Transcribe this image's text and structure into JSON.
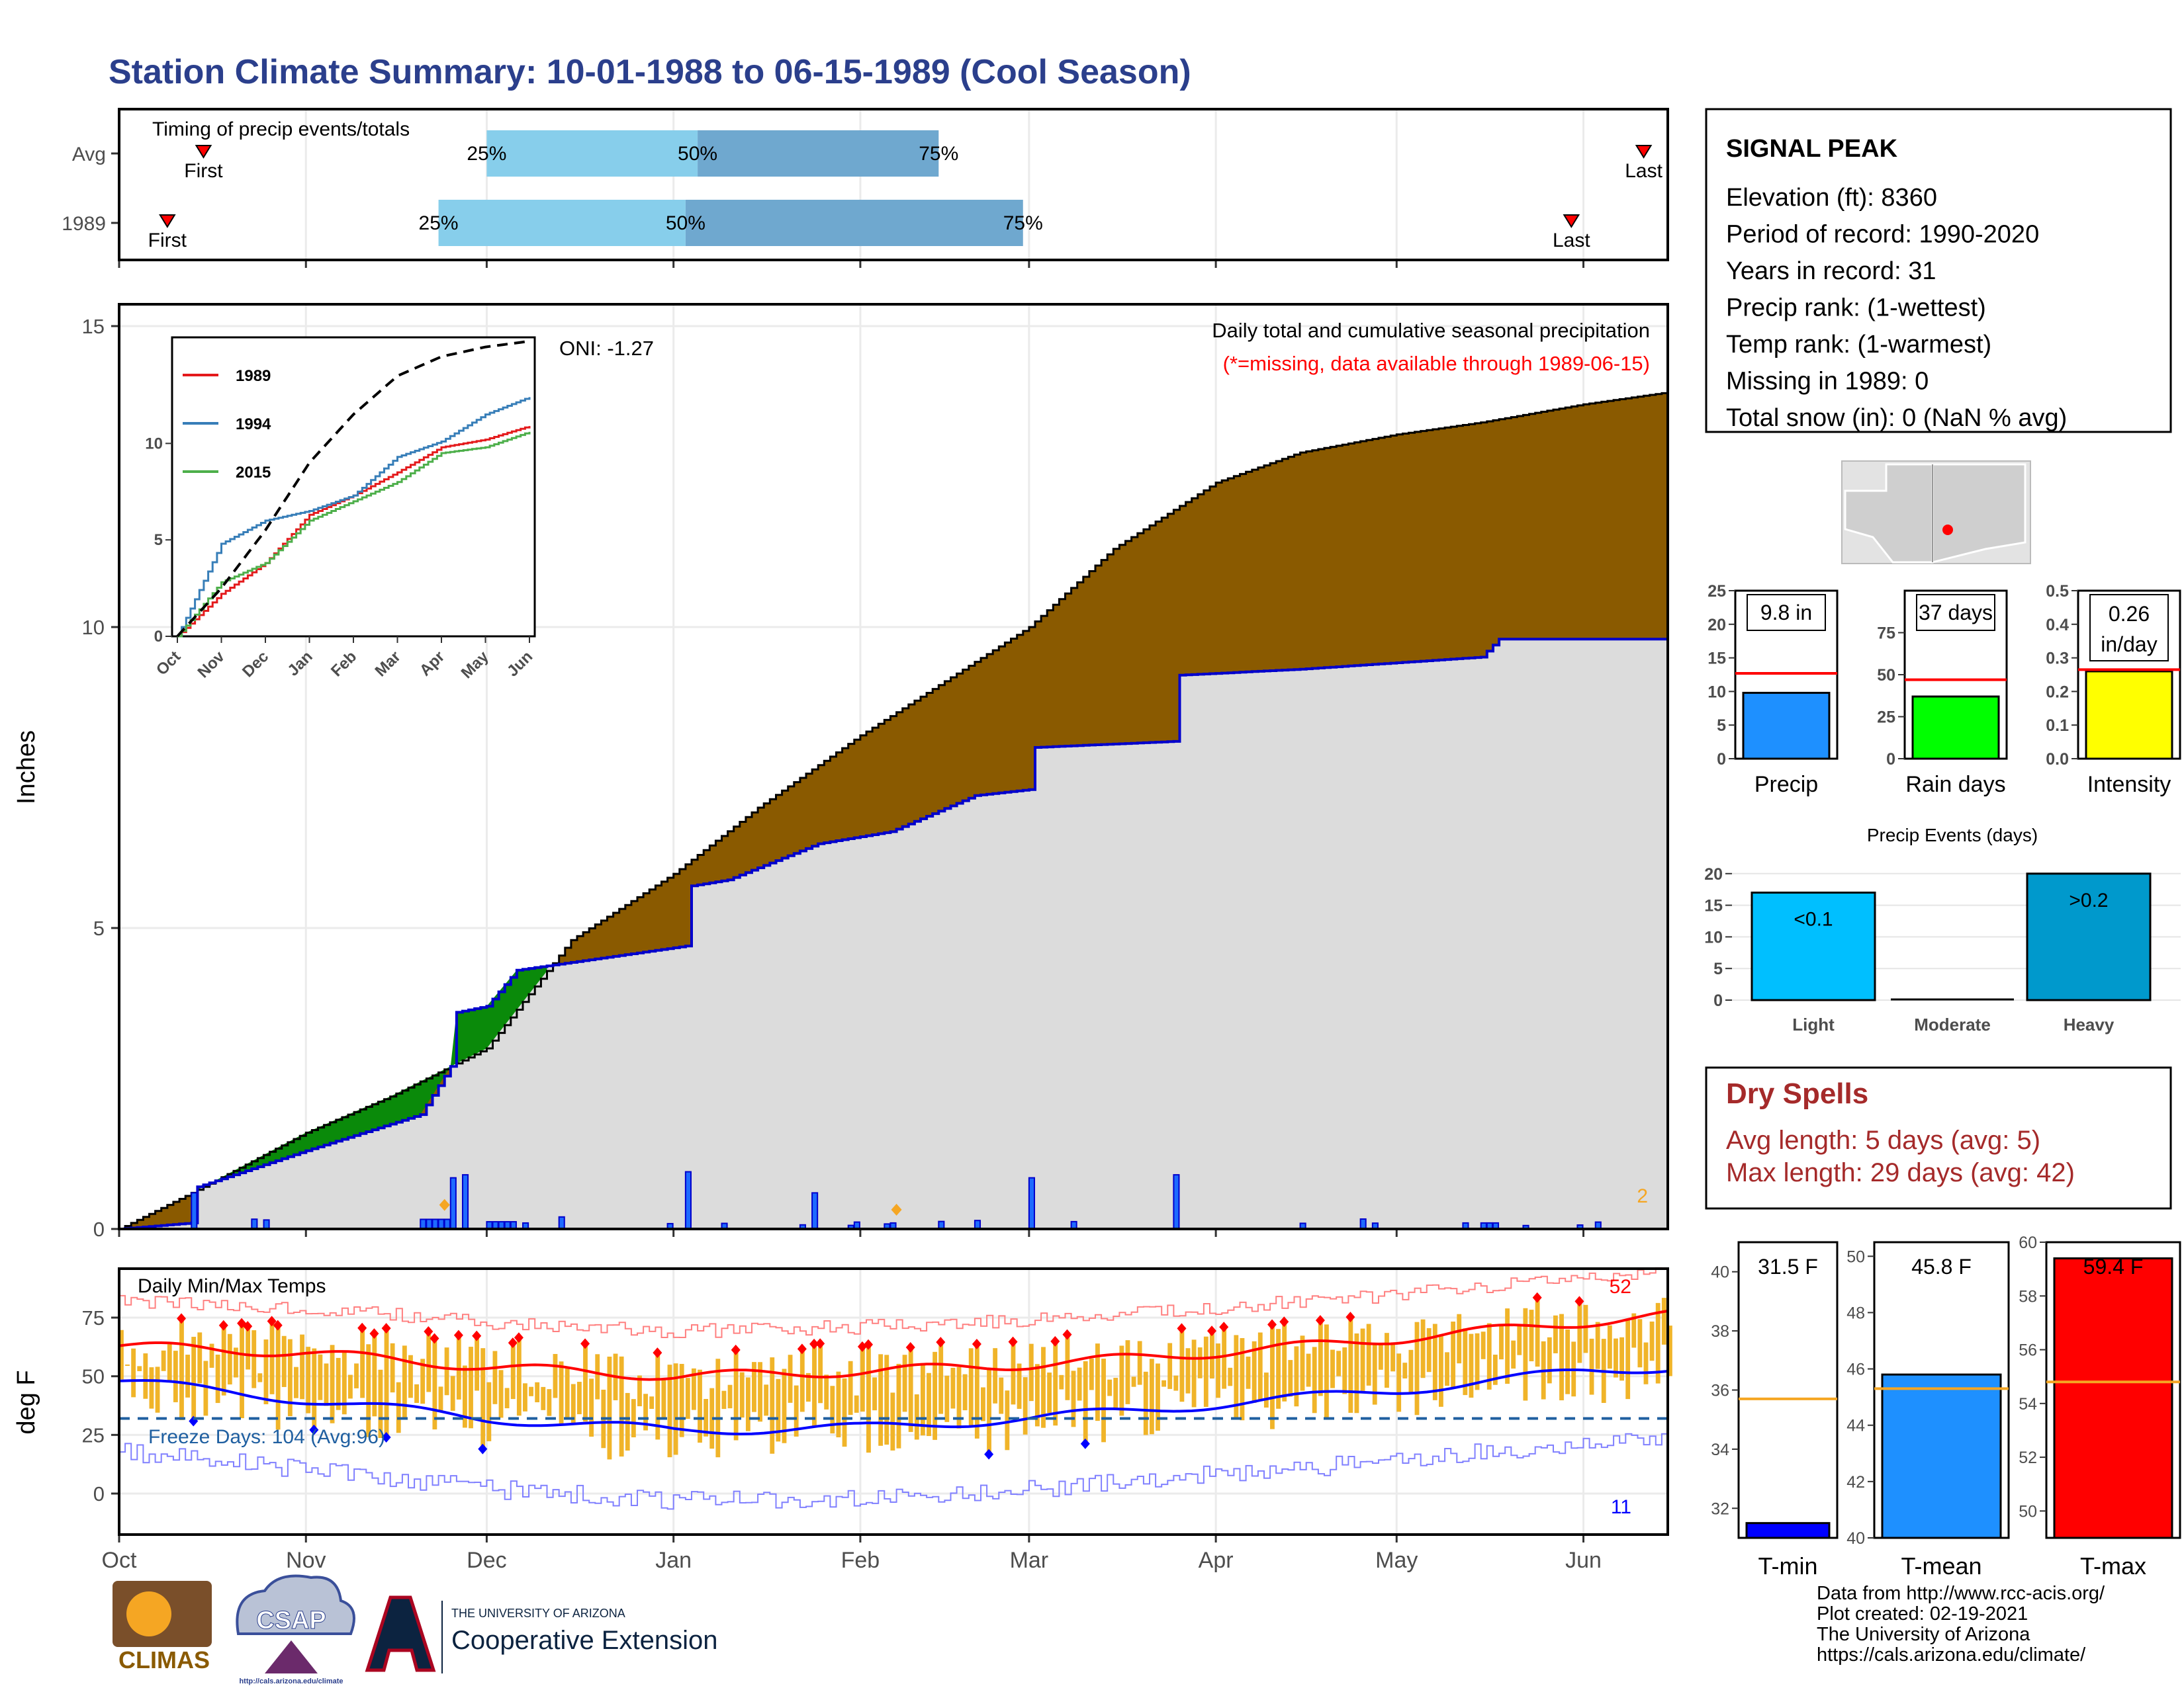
{
  "title": "Station Climate Summary: 10-01-1988 to 06-15-1989 (Cool Season)",
  "colors": {
    "title": "#2b3f8c",
    "precip_fill": "#8a5a00",
    "avg_fill": "#dcdcdc",
    "avg_line": "#0000cc",
    "timing_light": "#87ceeb",
    "timing_dark": "#6fa8cf",
    "temp_bar": "#f0b429",
    "red": "#ff0000",
    "blue": "#0000ff",
    "dry_spell": "#a52a2a",
    "freeze_line": "#1f5fa0"
  },
  "timing": {
    "title": "Timing of precip events/totals",
    "rows": [
      {
        "label": "Avg",
        "first": "First",
        "last": "Last",
        "p25": "25%",
        "p50": "50%",
        "p75": "75%",
        "first_date": "1988-10-15",
        "last_date": "1989-06-11",
        "q25_date": "1988-12-01",
        "q50_date": "1989-01-05",
        "q75_date": "1989-02-14"
      },
      {
        "label": "1989",
        "first": "First",
        "last": "Last",
        "p25": "25%",
        "p50": "50%",
        "p75": "75%",
        "first_date": "1988-10-09",
        "last_date": "1989-05-30",
        "q25_date": "1988-11-23",
        "q50_date": "1989-01-03",
        "q75_date": "1989-02-28"
      }
    ]
  },
  "main_plot": {
    "ylabel": "Inches",
    "y_ticks": [
      "0",
      "5",
      "10",
      "15"
    ],
    "oni": "ONI: -1.27",
    "subtitle": "Daily total and cumulative seasonal precipitation",
    "missing_note": "(*=missing, data available through 1989-06-15)",
    "missing_count": "2"
  },
  "inset": {
    "legend": [
      "1989",
      "1994",
      "2015"
    ],
    "legend_colors": [
      "#e41a1c",
      "#377eb8",
      "#4daf4a"
    ],
    "y_ticks": [
      "0",
      "5",
      "10"
    ],
    "x_ticks": [
      "Oct",
      "Nov",
      "Dec",
      "Jan",
      "Feb",
      "Mar",
      "Apr",
      "May",
      "Jun"
    ]
  },
  "temp_plot": {
    "ylabel": "deg F",
    "title": "Daily Min/Max Temps",
    "y_ticks": [
      "0",
      "25",
      "50",
      "75"
    ],
    "freeze_label": "Freeze Days: 104 (Avg:96)",
    "max_count": "52",
    "min_count": "11"
  },
  "x_months": [
    "Oct",
    "Nov",
    "Dec",
    "Jan",
    "Feb",
    "Mar",
    "Apr",
    "May",
    "Jun"
  ],
  "station": {
    "name": "SIGNAL PEAK",
    "lines": [
      "Elevation (ft): 8360",
      "Period of record: 1990-2020",
      "Years in record: 31",
      "Precip rank:  (1-wettest)",
      "Temp rank:  (1-warmest)",
      "Missing in 1989: 0",
      "Total snow (in): 0 (NaN % avg)"
    ]
  },
  "summary_bars": [
    {
      "label": "Precip",
      "value_text": "9.8 in",
      "value": 9.8,
      "avg": 12.7,
      "ymax": 25,
      "ticks": [
        "0",
        "5",
        "10",
        "15",
        "20",
        "25"
      ],
      "color": "#1e90ff"
    },
    {
      "label": "Rain days",
      "value_text": "37 days",
      "value": 37,
      "avg": 47,
      "ymax": 100,
      "ticks": [
        "0",
        "25",
        "50",
        "75"
      ],
      "color": "#00ff00"
    },
    {
      "label": "Intensity",
      "value_text": "0.26 in/day",
      "value_line1": "0.26",
      "value_line2": "in/day",
      "value": 0.26,
      "avg": 0.265,
      "ymax": 0.5,
      "ticks": [
        "0.0",
        "0.1",
        "0.2",
        "0.3",
        "0.4",
        "0.5"
      ],
      "color": "#ffff00"
    }
  ],
  "precip_events": {
    "title": "Precip Events (days)",
    "categories": [
      "Light",
      "Moderate",
      "Heavy"
    ],
    "labels": [
      "<0.1",
      "",
      ">0.2"
    ],
    "values": [
      17,
      0,
      20
    ],
    "colors": [
      "#00bfff",
      "#1e90ff",
      "#0099cc"
    ],
    "ticks": [
      "0",
      "5",
      "10",
      "15",
      "20"
    ]
  },
  "dry_spells": {
    "title": "Dry Spells",
    "avg_length": "Avg length: 5 days (avg: 5)",
    "max_length": "Max length: 29 days (avg: 42)"
  },
  "temp_bars": [
    {
      "label": "T-min",
      "value_text": "31.5 F",
      "value": 31.5,
      "avg": 35.7,
      "ymin": 31,
      "ymax": 41,
      "ticks": [
        "32",
        "34",
        "36",
        "38",
        "40"
      ],
      "color": "#0000ff"
    },
    {
      "label": "T-mean",
      "value_text": "45.8 F",
      "value": 45.8,
      "avg": 45.3,
      "ymin": 40,
      "ymax": 50.5,
      "ticks": [
        "40",
        "42",
        "44",
        "46",
        "48",
        "50"
      ],
      "color": "#1e90ff"
    },
    {
      "label": "T-max",
      "value_text": "59.4 F",
      "value": 59.4,
      "avg": 54.8,
      "ymin": 49,
      "ymax": 60,
      "ticks": [
        "50",
        "52",
        "54",
        "56",
        "58",
        "60"
      ],
      "color": "#ff0000"
    }
  ],
  "footer": {
    "logo1": "CLIMAS",
    "logo2": "CSAP",
    "logo2_url": "http://cals.arizona.edu/climate",
    "logo3_top": "THE UNIVERSITY OF ARIZONA",
    "logo3_main": "Cooperative Extension",
    "credits": [
      "Data from http://www.rcc-acis.org/",
      "Plot created: 02-19-2021",
      "The University of Arizona",
      "https://cals.arizona.edu/climate/"
    ]
  },
  "chart_data": [
    {
      "type": "area",
      "title": "Daily total and cumulative seasonal precipitation",
      "ylabel": "Inches",
      "ylim": [
        0,
        15
      ],
      "x_range": [
        "1988-10-01",
        "1989-06-15"
      ],
      "series": [
        {
          "name": "",
          "x": [
            "1988-10-01",
            "1988-10-15",
            "1988-11-01",
            "1988-11-15",
            "1988-12-01",
            "1988-12-15",
            "1989-01-01",
            "1989-01-15",
            "1989-02-01",
            "1989-02-15",
            "1989-03-01",
            "1989-03-15",
            "1989-04-01",
            "1989-04-15",
            "1989-05-01",
            "1989-05-15",
            "1989-06-01",
            "1989-06-15"
          ],
          "y": [
            0,
            0.7,
            1.6,
            2.2,
            3.0,
            4.8,
            5.9,
            7.0,
            8.2,
            9.1,
            10.0,
            11.3,
            12.4,
            12.9,
            13.2,
            13.4,
            13.7,
            13.9
          ]
        },
        {
          "name": "",
          "x": [
            "1988-10-01",
            "1988-10-13",
            "1988-10-14",
            "1988-11-01",
            "1988-11-20",
            "1988-11-25",
            "1988-11-26",
            "1988-12-01",
            "1988-12-06",
            "1989-01-03",
            "1989-01-04",
            "1989-01-10",
            "1989-01-25",
            "1989-02-06",
            "1989-02-20",
            "1989-03-01",
            "1989-03-02",
            "1989-03-25",
            "1989-03-26",
            "1989-04-15",
            "1989-05-15",
            "1989-05-18",
            "1989-06-15"
          ],
          "y": [
            0,
            0.1,
            0.7,
            1.3,
            1.9,
            2.7,
            3.6,
            3.7,
            4.3,
            4.7,
            5.7,
            5.8,
            6.4,
            6.6,
            7.2,
            7.3,
            8.0,
            8.1,
            9.2,
            9.3,
            9.5,
            9.8,
            9.8
          ]
        },
        {
          "name": "",
          "x": [
            "1988-10-13",
            "1988-10-25",
            "1988-11-25",
            "1988-11-27",
            "1988-12-13",
            "1989-01-03",
            "1989-01-24",
            "1989-02-06",
            "1989-03-01",
            "1989-03-25",
            "1989-05-12",
            "1989-05-17"
          ],
          "y": [
            0.6,
            0.15,
            0.85,
            0.9,
            0.2,
            0.95,
            0.6,
            0.1,
            0.85,
            0.9,
            0.1,
            0.1
          ]
        }
      ]
    },
    {
      "type": "line",
      "title": "",
      "x_ticks": [
        "Oct",
        "Nov",
        "Dec",
        "Jan",
        "Feb",
        "Mar",
        "Apr",
        "May",
        "Jun"
      ],
      "ylim": [
        0,
        15
      ],
      "series": [
        {
          "name": "1989",
          "values": [
            0,
            2.2,
            3.8,
            6.3,
            7.3,
            8.5,
            9.8,
            10.2,
            10.9
          ]
        },
        {
          "name": "1994",
          "values": [
            0,
            4.8,
            6.0,
            6.5,
            7.3,
            9.3,
            10.1,
            11.5,
            12.4
          ]
        },
        {
          "name": "2015",
          "values": [
            0,
            2.8,
            3.8,
            6.0,
            7.0,
            8.0,
            9.5,
            9.8,
            10.6
          ]
        },
        {
          "name": "",
          "values": [
            0,
            2.5,
            5.5,
            9.0,
            11.5,
            13.5,
            14.5,
            15.0,
            15.3
          ]
        }
      ]
    },
    {
      "type": "line",
      "title": "Daily Min/Max Temps",
      "ylabel": "deg F",
      "ylim": [
        -10,
        92
      ],
      "x_range": [
        "1988-10-01",
        "1989-06-15"
      ],
      "series": [
        {
          "name": "",
          "values_daily_mean_by_month": [
            63,
            60,
            54,
            50,
            52,
            55,
            60,
            66,
            73
          ]
        },
        {
          "name": "",
          "values_daily_mean_by_month": [
            48,
            40,
            32,
            27,
            28,
            32,
            38,
            44,
            52
          ]
        }
      ]
    }
  ]
}
